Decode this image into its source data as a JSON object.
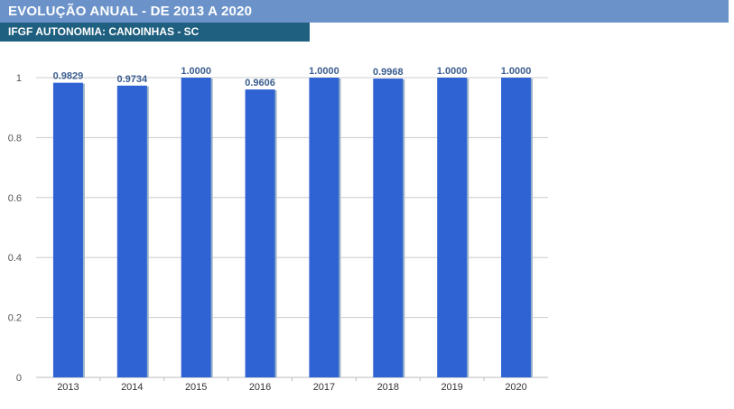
{
  "header": {
    "title": "EVOLUÇÃO ANUAL - DE 2013 A 2020",
    "subtitle": "IFGF AUTONOMIA: CANOINHAS - SC"
  },
  "colors": {
    "header_bg": "#6b93c9",
    "subheader_bg": "#1f5f7f",
    "bar": "#2f63d3",
    "data_label": "#3a5d8f",
    "grid": "#cccccc"
  },
  "chart_data": {
    "type": "bar",
    "categories": [
      "2013",
      "2014",
      "2015",
      "2016",
      "2017",
      "2018",
      "2019",
      "2020"
    ],
    "values": [
      0.9829,
      0.9734,
      1.0,
      0.9606,
      1.0,
      0.9968,
      1.0,
      1.0
    ],
    "data_labels": [
      "0.9829",
      "0.9734",
      "1.0000",
      "0.9606",
      "1.0000",
      "0.9968",
      "1.0000",
      "1.0000"
    ],
    "y_ticks": [
      "0",
      "0.2",
      "0.4",
      "0.6",
      "0.8",
      "1"
    ],
    "ylim": [
      0,
      1
    ],
    "grid": true,
    "legend": "none"
  }
}
